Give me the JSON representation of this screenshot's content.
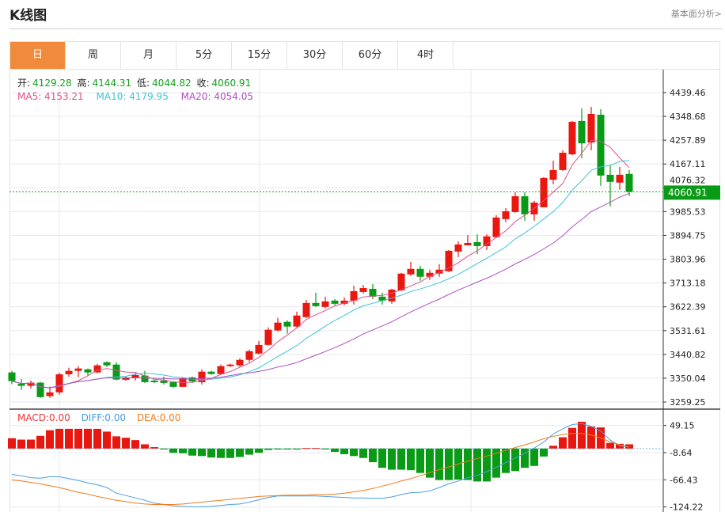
{
  "header": {
    "title": "K线图",
    "link": "基本面分析>"
  },
  "tabs": [
    {
      "label": "日",
      "active": true
    },
    {
      "label": "周"
    },
    {
      "label": "月"
    },
    {
      "label": "5分"
    },
    {
      "label": "15分"
    },
    {
      "label": "30分"
    },
    {
      "label": "60分"
    },
    {
      "label": "4时"
    }
  ],
  "ohlc_info": {
    "open_label": "开:",
    "open": "4129.28",
    "high_label": "高:",
    "high": "4144.31",
    "low_label": "低:",
    "low": "4044.82",
    "close_label": "收:",
    "close": "4060.91"
  },
  "ma_info": {
    "ma5": "MA5: 4153.21",
    "ma10": "MA10: 4179.95",
    "ma20": "MA20: 4054.05"
  },
  "macd_info": {
    "macd": "MACD:0.00",
    "diff": "DIFF:0.00",
    "dea": "DEA:0.00"
  },
  "colors": {
    "up": "#e8170f",
    "down": "#0a9b16",
    "ma5": "#e0508a",
    "ma10": "#3cc3d8",
    "ma20": "#b04dc0",
    "diff": "#4a9ee0",
    "dea": "#f07c1e",
    "active_tab": "#f08a3c"
  },
  "chart_data": {
    "type": "candlestick",
    "price_axis_ticks": [
      "4439.46",
      "4348.68",
      "4257.89",
      "4167.11",
      "4076.32",
      "3985.53",
      "3894.75",
      "3803.96",
      "3713.18",
      "3622.39",
      "3531.61",
      "3440.82",
      "3350.04",
      "3259.25"
    ],
    "price_range": [
      3259.25,
      4439.46
    ],
    "last_price": "4060.91",
    "candles": [
      [
        3372,
        3339,
        3378,
        3327
      ],
      [
        3329,
        3321,
        3347,
        3305
      ],
      [
        3321,
        3333,
        3341,
        3311
      ],
      [
        3333,
        3278,
        3336,
        3275
      ],
      [
        3282,
        3296,
        3318,
        3275
      ],
      [
        3296,
        3365,
        3371,
        3287
      ],
      [
        3365,
        3378,
        3390,
        3356
      ],
      [
        3378,
        3387,
        3396,
        3354
      ],
      [
        3384,
        3372,
        3387,
        3360
      ],
      [
        3372,
        3399,
        3405,
        3369
      ],
      [
        3411,
        3399,
        3414,
        3393
      ],
      [
        3402,
        3345,
        3411,
        3342
      ],
      [
        3344,
        3353,
        3356,
        3341
      ],
      [
        3350,
        3362,
        3371,
        3341
      ],
      [
        3360,
        3335,
        3378,
        3332
      ],
      [
        3341,
        3335,
        3344,
        3332
      ],
      [
        3341,
        3332,
        3356,
        3326
      ],
      [
        3335,
        3317,
        3338,
        3314
      ],
      [
        3317,
        3350,
        3353,
        3317
      ],
      [
        3353,
        3338,
        3356,
        3332
      ],
      [
        3335,
        3375,
        3384,
        3326
      ],
      [
        3375,
        3366,
        3378,
        3363
      ],
      [
        3366,
        3396,
        3402,
        3363
      ],
      [
        3396,
        3402,
        3405,
        3393
      ],
      [
        3399,
        3420,
        3426,
        3393
      ],
      [
        3420,
        3453,
        3459,
        3411
      ],
      [
        3444,
        3477,
        3492,
        3441
      ],
      [
        3477,
        3535,
        3544,
        3474
      ],
      [
        3532,
        3562,
        3580,
        3529
      ],
      [
        3565,
        3547,
        3571,
        3520
      ],
      [
        3547,
        3589,
        3604,
        3544
      ],
      [
        3583,
        3637,
        3649,
        3580
      ],
      [
        3637,
        3625,
        3676,
        3622
      ],
      [
        3622,
        3643,
        3661,
        3616
      ],
      [
        3646,
        3634,
        3652,
        3628
      ],
      [
        3634,
        3646,
        3658,
        3628
      ],
      [
        3646,
        3682,
        3703,
        3631
      ],
      [
        3679,
        3694,
        3706,
        3673
      ],
      [
        3691,
        3661,
        3709,
        3652
      ],
      [
        3661,
        3646,
        3676,
        3631
      ],
      [
        3643,
        3688,
        3691,
        3634
      ],
      [
        3685,
        3749,
        3752,
        3682
      ],
      [
        3746,
        3767,
        3794,
        3740
      ],
      [
        3767,
        3737,
        3779,
        3722
      ],
      [
        3737,
        3752,
        3764,
        3725
      ],
      [
        3749,
        3764,
        3785,
        3737
      ],
      [
        3758,
        3836,
        3839,
        3755
      ],
      [
        3833,
        3860,
        3872,
        3812
      ],
      [
        3857,
        3866,
        3896,
        3857
      ],
      [
        3869,
        3854,
        3899,
        3824
      ],
      [
        3854,
        3891,
        3899,
        3839
      ],
      [
        3888,
        3963,
        3972,
        3885
      ],
      [
        3957,
        3987,
        3999,
        3945
      ],
      [
        3984,
        4044,
        4059,
        3981
      ],
      [
        4044,
        3975,
        4059,
        3951
      ],
      [
        3975,
        4020,
        4026,
        3951
      ],
      [
        4002,
        4114,
        4117,
        4002
      ],
      [
        4107,
        4144,
        4180,
        4090
      ],
      [
        4144,
        4210,
        4219,
        4141
      ],
      [
        4204,
        4328,
        4331,
        4201
      ],
      [
        4331,
        4246,
        4379,
        4189
      ],
      [
        4249,
        4358,
        4385,
        4219
      ],
      [
        4355,
        4123,
        4376,
        4084
      ],
      [
        4126,
        4099,
        4162,
        4006
      ],
      [
        4096,
        4126,
        4156,
        4069
      ],
      [
        4129.28,
        4060.91,
        4144.31,
        4044.82
      ]
    ],
    "macd_axis_ticks": [
      "49.15",
      "-8.64",
      "-66.43",
      "-124.22"
    ],
    "macd_range": [
      -135,
      62
    ],
    "macd_hist": [
      22,
      19,
      19,
      27,
      39,
      42,
      42,
      42,
      42,
      42,
      36,
      26,
      23,
      18,
      9,
      3,
      -2,
      -9,
      -10,
      -15,
      -16,
      -19,
      -20,
      -20,
      -18,
      -13,
      -9,
      -3,
      -2,
      -2,
      -2,
      1,
      1,
      -2,
      -7,
      -12,
      -16,
      -20,
      -29,
      -41,
      -45,
      -45,
      -46,
      -52,
      -62,
      -67,
      -67,
      -66,
      -67,
      -70,
      -70,
      -62,
      -52,
      -48,
      -41,
      -37,
      -17,
      6,
      24,
      44,
      57,
      47,
      45,
      12,
      10,
      9
    ],
    "diff": [
      -55,
      -58,
      -62,
      -63,
      -60,
      -60,
      -64,
      -68,
      -73,
      -77,
      -83,
      -95,
      -100,
      -105,
      -110,
      -116,
      -119,
      -122,
      -123,
      -124,
      -124,
      -123,
      -121,
      -119,
      -118,
      -114,
      -109,
      -104,
      -101,
      -101,
      -101,
      -101,
      -101,
      -102,
      -103,
      -104,
      -105,
      -105,
      -106,
      -106,
      -103,
      -98,
      -94,
      -93,
      -90,
      -83,
      -75,
      -69,
      -62,
      -57,
      -49,
      -40,
      -30,
      -20,
      -10,
      1,
      14,
      31,
      42,
      51,
      53,
      47,
      37,
      18,
      6,
      3
    ],
    "dea": [
      -67,
      -69,
      -72,
      -75,
      -79,
      -83,
      -88,
      -93,
      -97,
      -102,
      -106,
      -110,
      -113,
      -116,
      -118,
      -119,
      -119,
      -119,
      -118,
      -116,
      -114,
      -112,
      -110,
      -108,
      -106,
      -104,
      -102,
      -101,
      -100,
      -99,
      -99,
      -99,
      -98,
      -98,
      -97,
      -95,
      -92,
      -89,
      -85,
      -80,
      -75,
      -69,
      -64,
      -58,
      -51,
      -45,
      -39,
      -33,
      -27,
      -21,
      -16,
      -10,
      -4,
      2,
      8,
      14,
      21,
      26,
      30,
      32,
      32,
      29,
      23,
      14,
      8,
      3
    ]
  }
}
